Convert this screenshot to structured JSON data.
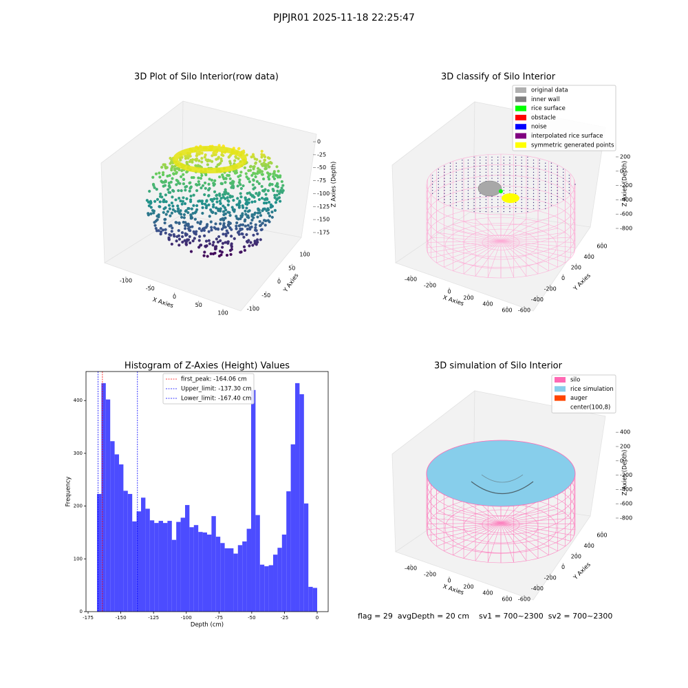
{
  "suptitle": "PJPJR01 2025-11-18 22:25:47",
  "status_text": "flag = 29  avgDepth = 20 cm    sv1 = 700~2300  sv2 = 700~2300",
  "chart_data": [
    {
      "type": "scatter3d",
      "title": "3D Plot of Silo Interior(row data)",
      "xlabel": "X Axies",
      "ylabel": "Y Axies",
      "zlabel": "Z Axies (Depth)",
      "xlim": [
        -130,
        130
      ],
      "ylim": [
        -120,
        120
      ],
      "zlim": [
        -185,
        10
      ],
      "xticks": [
        -100,
        -50,
        0,
        50,
        100
      ],
      "yticks": [
        -100,
        -50,
        0,
        50,
        100
      ],
      "zticks": [
        0,
        -25,
        -50,
        -75,
        -100,
        -125,
        -150,
        -175
      ]
    },
    {
      "type": "classify3d",
      "title": "3D classify of Silo Interior",
      "xlabel": "X Axies",
      "ylabel": "Y Axies",
      "zlabel": "Z Axies (Depth)",
      "xlim": [
        -500,
        700
      ],
      "ylim": [
        -700,
        700
      ],
      "zlim": [
        -900,
        300
      ],
      "xticks": [
        -400,
        -200,
        0,
        200,
        400,
        600
      ],
      "yticks": [
        -600,
        -400,
        -200,
        0,
        200,
        400,
        600
      ],
      "zticks": [
        200,
        0,
        -200,
        -400,
        -600,
        -800
      ],
      "legend": [
        {
          "name": "original data",
          "color": "#b0b0b0"
        },
        {
          "name": "inner wall",
          "color": "#808080"
        },
        {
          "name": "rice surface",
          "color": "#00ff00"
        },
        {
          "name": "obstacle",
          "color": "#ff0000"
        },
        {
          "name": "noise",
          "color": "#0000ff"
        },
        {
          "name": "interpolated rice surface",
          "color": "#800080"
        },
        {
          "name": "symmetric generated points",
          "color": "#ffff00"
        }
      ]
    },
    {
      "type": "histogram",
      "title": "Histogram of Z-Axies (Height) Values",
      "xlabel": "Depth (cm)",
      "ylabel": "Frequency",
      "color": "#4c4cff",
      "bins": [
        -168.2,
        -164.84,
        -161.47,
        -158.11,
        -154.74,
        -151.38,
        -148.02,
        -144.65,
        -141.29,
        -137.92,
        -134.56,
        -131.2,
        -127.83,
        -124.47,
        -121.1,
        -117.74,
        -114.38,
        -111.01,
        -107.65,
        -104.28,
        -100.92,
        -97.56,
        -94.19,
        -90.83,
        -87.46,
        -84.1,
        -80.74,
        -77.37,
        -74.01,
        -70.64,
        -67.28,
        -63.92,
        -60.55,
        -57.19,
        -53.82,
        -50.46,
        -47.1,
        -43.73,
        -40.37,
        -37.0,
        -33.64,
        -30.28,
        -26.91,
        -23.55,
        -20.18,
        -16.82,
        -13.46,
        -10.09,
        -6.73,
        -3.36,
        0
      ],
      "values": [
        223,
        433,
        402,
        323,
        298,
        279,
        229,
        223,
        171,
        190,
        216,
        195,
        173,
        168,
        172,
        168,
        172,
        136,
        170,
        178,
        202,
        160,
        164,
        151,
        150,
        146,
        181,
        142,
        130,
        120,
        120,
        110,
        126,
        133,
        157,
        420,
        183,
        89,
        86,
        88,
        108,
        121,
        146,
        228,
        317,
        433,
        412,
        205,
        47,
        45
      ],
      "xlim": [
        -176.6,
        8.4
      ],
      "ylim": [
        0,
        455
      ],
      "xticks": [
        -175,
        -150,
        -125,
        -100,
        -75,
        -50,
        -25,
        0
      ],
      "yticks": [
        0,
        100,
        200,
        300,
        400
      ],
      "lines": [
        {
          "name": "first_peak: -164.06 cm",
          "value": -164.06,
          "color": "#ff0000"
        },
        {
          "name": "Upper_limit: -137.30 cm",
          "value": -137.3,
          "color": "#0000ff"
        },
        {
          "name": "Lower_limit: -167.40 cm",
          "value": -167.4,
          "color": "#0000ff"
        }
      ],
      "legend_loc": "upper center"
    },
    {
      "type": "simulation3d",
      "title": "3D simulation of Silo Interior",
      "xlabel": "X Axies",
      "ylabel": "Y Axies",
      "zlabel": "Z Axies (Depth)",
      "xlim": [
        -500,
        700
      ],
      "ylim": [
        -700,
        700
      ],
      "zlim": [
        -900,
        500
      ],
      "xticks": [
        -400,
        -200,
        0,
        200,
        400,
        600
      ],
      "yticks": [
        -600,
        -400,
        -200,
        0,
        200,
        400,
        600
      ],
      "zticks": [
        400,
        200,
        0,
        -200,
        -400,
        -600,
        -800
      ],
      "legend": [
        {
          "name": "silo",
          "color": "#ff69b4"
        },
        {
          "name": "rice simulation",
          "color": "#87ceeb"
        },
        {
          "name": "auger",
          "color": "#ff4500"
        },
        {
          "name": "center(100,8)",
          "color": "#ffffff"
        }
      ]
    }
  ]
}
